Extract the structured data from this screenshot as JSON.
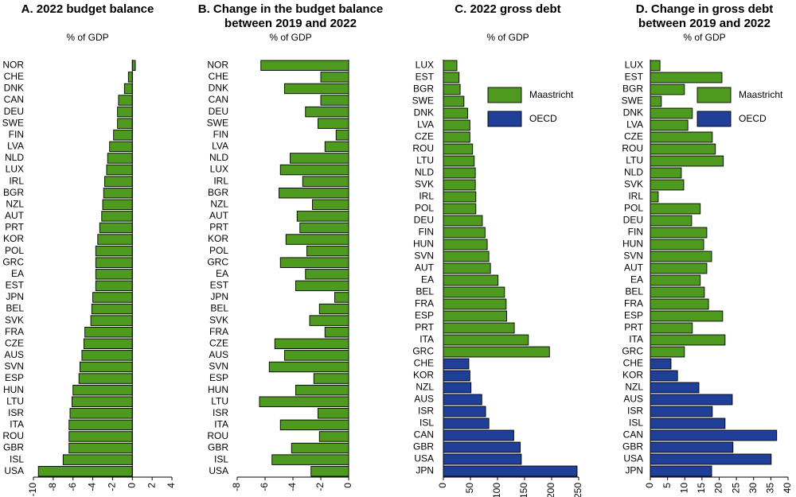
{
  "chart_data": [
    {
      "type": "barh",
      "title": [
        "A. 2022 budget balance"
      ],
      "subtitle": "% of GDP",
      "categories": [
        "NOR",
        "CHE",
        "DNK",
        "CAN",
        "DEU",
        "SWE",
        "FIN",
        "LVA",
        "NLD",
        "LUX",
        "IRL",
        "BGR",
        "NZL",
        "AUT",
        "PRT",
        "KOR",
        "POL",
        "GRC",
        "EA",
        "EST",
        "JPN",
        "BEL",
        "SVK",
        "FRA",
        "CZE",
        "AUS",
        "SVN",
        "ESP",
        "HUN",
        "LTU",
        "ISR",
        "ITA",
        "ROU",
        "GBR",
        "ISL",
        "USA"
      ],
      "values": [
        0.3,
        -0.4,
        -0.8,
        -1.4,
        -1.5,
        -1.5,
        -1.9,
        -2.3,
        -2.5,
        -2.6,
        -2.8,
        -2.9,
        -3.0,
        -3.1,
        -3.3,
        -3.5,
        -3.7,
        -3.7,
        -3.7,
        -3.7,
        -4.0,
        -4.1,
        -4.2,
        -4.8,
        -4.9,
        -5.1,
        -5.3,
        -5.4,
        -6.0,
        -6.1,
        -6.3,
        -6.4,
        -6.4,
        -6.4,
        -7.0,
        -9.5
      ],
      "color": "#4e9a1e",
      "xlim": [
        -10,
        4
      ],
      "xticks": [
        -10,
        -8,
        -6,
        -4,
        -2,
        0,
        2,
        4
      ]
    },
    {
      "type": "barh",
      "title": [
        "B. Change in the budget balance",
        "between 2019 and 2022"
      ],
      "subtitle": "% of GDP",
      "categories": [
        "NOR",
        "CHE",
        "DNK",
        "CAN",
        "DEU",
        "SWE",
        "FIN",
        "LVA",
        "NLD",
        "LUX",
        "IRL",
        "BGR",
        "NZL",
        "AUT",
        "PRT",
        "KOR",
        "POL",
        "GRC",
        "EA",
        "EST",
        "JPN",
        "BEL",
        "SVK",
        "FRA",
        "CZE",
        "AUS",
        "SVN",
        "ESP",
        "HUN",
        "LTU",
        "ISR",
        "ITA",
        "ROU",
        "GBR",
        "ISL",
        "USA"
      ],
      "values": [
        -6.3,
        -2.0,
        -4.6,
        -2.0,
        -3.1,
        -2.2,
        -0.9,
        -1.7,
        -4.2,
        -4.9,
        -3.3,
        -5.0,
        -2.6,
        -3.7,
        -3.5,
        -4.5,
        -3.0,
        -4.9,
        -3.1,
        -3.8,
        -1.0,
        -2.1,
        -2.8,
        -1.7,
        -5.3,
        -4.6,
        -5.7,
        -2.5,
        -3.8,
        -6.4,
        -2.2,
        -4.9,
        -2.1,
        -4.1,
        -5.5,
        -2.7
      ],
      "color": "#4e9a1e",
      "xlim": [
        -8,
        0
      ],
      "xticks": [
        -8,
        -6,
        -4,
        -2,
        0
      ]
    },
    {
      "type": "barh",
      "title": [
        "C. 2022 gross debt"
      ],
      "subtitle": "% of GDP",
      "categories": [
        "LUX",
        "EST",
        "BGR",
        "SWE",
        "DNK",
        "LVA",
        "CZE",
        "ROU",
        "LTU",
        "NLD",
        "SVK",
        "IRL",
        "POL",
        "DEU",
        "FIN",
        "HUN",
        "SVN",
        "AUT",
        "EA",
        "BEL",
        "FRA",
        "ESP",
        "PRT",
        "ITA",
        "GRC",
        "CHE",
        "KOR",
        "NZL",
        "AUS",
        "ISR",
        "ISL",
        "CAN",
        "GBR",
        "USA",
        "JPN"
      ],
      "series": [
        {
          "name": "Maastricht",
          "color": "#4e9a1e",
          "values": [
            25,
            29,
            31,
            38,
            45,
            49,
            49,
            54,
            57,
            59,
            59,
            60,
            60,
            72,
            77,
            81,
            84,
            87,
            101,
            113,
            116,
            117,
            131,
            157,
            196,
            null,
            null,
            null,
            null,
            null,
            null,
            null,
            null,
            null,
            null
          ]
        },
        {
          "name": "OECD",
          "color": "#1f3f99",
          "values": [
            null,
            null,
            null,
            null,
            null,
            null,
            null,
            null,
            null,
            null,
            null,
            null,
            null,
            null,
            null,
            null,
            null,
            null,
            null,
            null,
            null,
            null,
            null,
            null,
            null,
            47,
            49,
            51,
            71,
            78,
            84,
            130,
            142,
            144,
            247
          ]
        }
      ],
      "legend": "upper right",
      "xlim": [
        0,
        250
      ],
      "xticks": [
        0,
        50,
        100,
        150,
        200,
        250
      ]
    },
    {
      "type": "barh",
      "title": [
        "D. Change in gross debt",
        "between 2019 and 2022"
      ],
      "subtitle": "% of GDP",
      "categories": [
        "LUX",
        "EST",
        "BGR",
        "SWE",
        "DNK",
        "LVA",
        "CZE",
        "ROU",
        "LTU",
        "NLD",
        "SVK",
        "IRL",
        "POL",
        "DEU",
        "FIN",
        "HUN",
        "SVN",
        "AUT",
        "EA",
        "BEL",
        "FRA",
        "ESP",
        "PRT",
        "ITA",
        "GRC",
        "CHE",
        "KOR",
        "NZL",
        "AUS",
        "ISR",
        "ISL",
        "CAN",
        "GBR",
        "USA",
        "JPN"
      ],
      "series": [
        {
          "name": "Maastricht",
          "color": "#4e9a1e",
          "values": [
            2.8,
            20.8,
            9.9,
            3.2,
            12.2,
            10.9,
            18,
            18.9,
            21.2,
            9,
            9.7,
            2.3,
            14.5,
            12,
            16.4,
            15.5,
            17.8,
            16.4,
            14.5,
            15.7,
            16.9,
            21,
            12.2,
            21.7,
            9.9,
            null,
            null,
            null,
            null,
            null,
            null,
            null,
            null,
            null,
            null
          ]
        },
        {
          "name": "OECD",
          "color": "#1f3f99",
          "values": [
            null,
            null,
            null,
            null,
            null,
            null,
            null,
            null,
            null,
            null,
            null,
            null,
            null,
            null,
            null,
            null,
            null,
            null,
            null,
            null,
            null,
            null,
            null,
            null,
            null,
            6,
            7.9,
            14.1,
            23.8,
            18,
            21.7,
            36.7,
            24,
            35.1,
            17.8
          ]
        }
      ],
      "legend": "upper right",
      "xlim": [
        0,
        40
      ],
      "xticks": [
        0,
        5,
        10,
        15,
        20,
        25,
        30,
        35,
        40
      ]
    }
  ]
}
